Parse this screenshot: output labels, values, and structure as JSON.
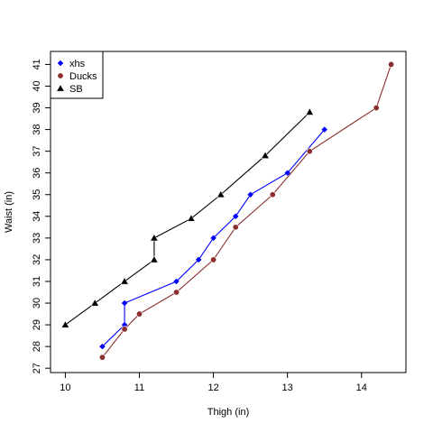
{
  "chart_data": {
    "type": "line",
    "title": "",
    "xlabel": "Thigh (in)",
    "ylabel": "Waist (in)",
    "xlim": [
      9.8,
      14.6
    ],
    "ylim": [
      26.8,
      41.6
    ],
    "xticks": [
      10,
      11,
      12,
      13,
      14
    ],
    "yticks": [
      27,
      28,
      29,
      30,
      31,
      32,
      33,
      34,
      35,
      36,
      37,
      38,
      39,
      40,
      41
    ],
    "grid": false,
    "legend_position": "top-left",
    "series": [
      {
        "name": "xhs",
        "color": "#0000ff",
        "marker": "diamond",
        "x": [
          10.5,
          10.8,
          10.8,
          11.5,
          11.8,
          12.0,
          12.3,
          12.5,
          13.0,
          13.5
        ],
        "y": [
          28,
          29,
          30,
          31,
          32,
          33,
          34,
          35,
          36,
          38
        ]
      },
      {
        "name": "Ducks",
        "color": "#8b2e2e",
        "marker": "circle",
        "x": [
          10.5,
          10.8,
          11.0,
          11.5,
          12.0,
          12.3,
          12.8,
          13.3,
          14.2,
          14.4
        ],
        "y": [
          27.5,
          28.8,
          29.5,
          30.5,
          32,
          33.5,
          35,
          37,
          39,
          41
        ]
      },
      {
        "name": "SB",
        "color": "#000000",
        "marker": "triangle",
        "x": [
          10.0,
          10.4,
          10.8,
          11.2,
          11.2,
          11.7,
          12.1,
          12.7,
          13.3
        ],
        "y": [
          29,
          30,
          31,
          32,
          33,
          33.9,
          35,
          36.8,
          38.8
        ]
      }
    ]
  }
}
